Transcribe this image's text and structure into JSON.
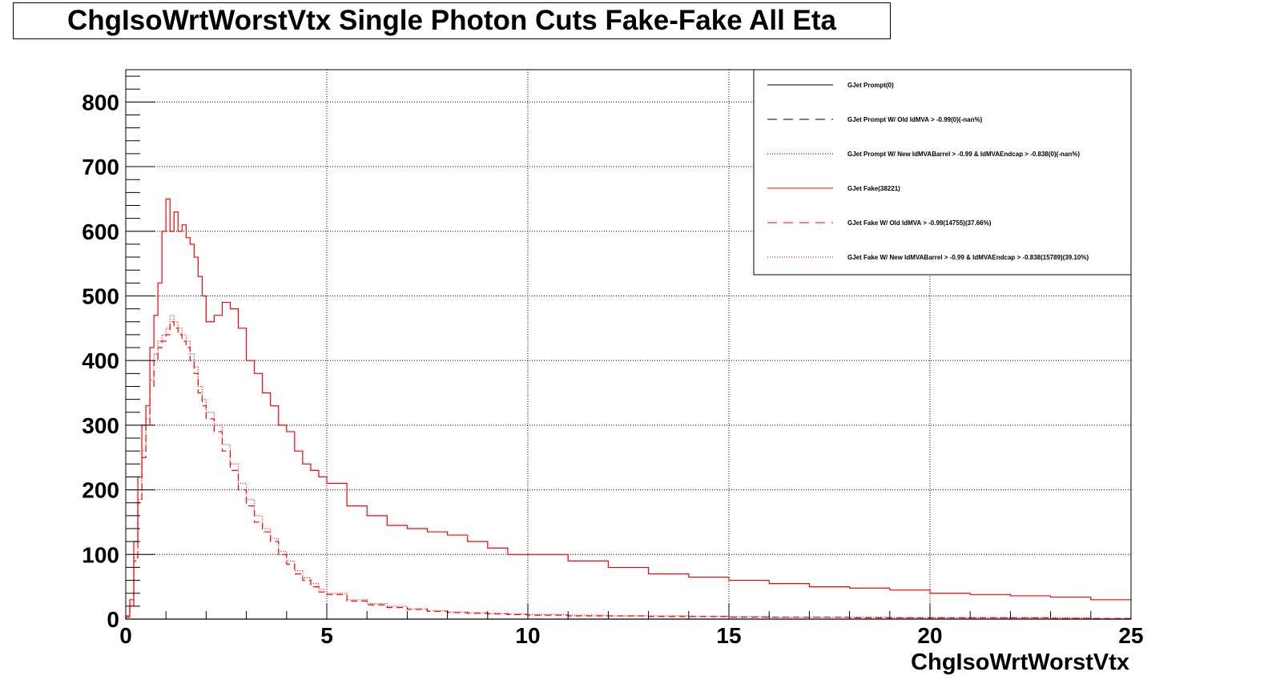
{
  "chart_data": {
    "type": "line",
    "title": "ChgIsoWrtWorstVtx Single Photon Cuts Fake-Fake All Eta",
    "xlabel": "ChgIsoWrtWorstVtx",
    "ylabel": "",
    "xlim": [
      0,
      25
    ],
    "ylim": [
      0,
      850
    ],
    "xticks": [
      "0",
      "5",
      "10",
      "15",
      "20",
      "25"
    ],
    "yticks": [
      "0",
      "100",
      "200",
      "300",
      "400",
      "500",
      "600",
      "700",
      "800"
    ],
    "grid": true,
    "legend_position": "top-right",
    "legend": [
      {
        "label": "GJet Prompt(0)",
        "color": "#000000",
        "style": "solid"
      },
      {
        "label": "GJet Prompt W/ Old IdMVA > -0.99(0)(-nan%)",
        "color": "#000000",
        "style": "dashed"
      },
      {
        "label": "GJet Prompt W/ New IdMVABarrel > -0.99 & IdMVAEndcap > -0.838(0)(-nan%)",
        "color": "#000000",
        "style": "dotted"
      },
      {
        "label": "GJet Fake(38221)",
        "color": "#ff0000",
        "style": "solid"
      },
      {
        "label": "GJet Fake W/ Old IdMVA > -0.99(14755)(37.66%)",
        "color": "#ff0000",
        "style": "dashed"
      },
      {
        "label": "GJet Fake W/ New IdMVABarrel > -0.99 & IdMVAEndcap > -0.838(15789)(39.10%)",
        "color": "#ff0000",
        "style": "dotted"
      }
    ],
    "series": [
      {
        "name": "GJet Prompt",
        "style": "solid",
        "color": "#000000",
        "x": [
          0,
          25
        ],
        "values": [
          0,
          0
        ]
      },
      {
        "name": "GJet Fake",
        "style": "solid",
        "color": "#ff0000",
        "x": [
          0.0,
          0.1,
          0.2,
          0.3,
          0.4,
          0.5,
          0.6,
          0.7,
          0.8,
          0.9,
          1.0,
          1.1,
          1.2,
          1.3,
          1.4,
          1.5,
          1.6,
          1.7,
          1.8,
          1.9,
          2.0,
          2.2,
          2.4,
          2.6,
          2.8,
          3.0,
          3.2,
          3.4,
          3.6,
          3.8,
          4.0,
          4.2,
          4.4,
          4.6,
          4.8,
          5.0,
          5.5,
          6.0,
          6.5,
          7.0,
          7.5,
          8.0,
          8.5,
          9.0,
          9.5,
          10.0,
          11.0,
          12.0,
          13.0,
          14.0,
          15.0,
          16.0,
          17.0,
          18.0,
          19.0,
          20.0,
          21.0,
          22.0,
          23.0,
          24.0,
          25.0
        ],
        "values": [
          5,
          30,
          120,
          220,
          300,
          330,
          420,
          470,
          520,
          600,
          650,
          600,
          630,
          600,
          610,
          590,
          580,
          560,
          530,
          500,
          460,
          470,
          490,
          480,
          450,
          400,
          380,
          350,
          330,
          300,
          290,
          260,
          240,
          230,
          220,
          210,
          175,
          160,
          145,
          140,
          135,
          130,
          120,
          110,
          100,
          100,
          90,
          80,
          70,
          65,
          60,
          55,
          50,
          48,
          45,
          40,
          38,
          36,
          34,
          30,
          28
        ]
      },
      {
        "name": "GJet Fake W/ Old IdMVA",
        "style": "dashed",
        "color": "#ff0000",
        "x": [
          0.0,
          0.1,
          0.2,
          0.3,
          0.4,
          0.5,
          0.6,
          0.7,
          0.8,
          0.9,
          1.0,
          1.1,
          1.2,
          1.3,
          1.4,
          1.5,
          1.6,
          1.7,
          1.8,
          1.9,
          2.0,
          2.2,
          2.4,
          2.6,
          2.8,
          3.0,
          3.2,
          3.4,
          3.6,
          3.8,
          4.0,
          4.2,
          4.4,
          4.6,
          4.8,
          5.0,
          5.5,
          6.0,
          6.5,
          7.0,
          7.5,
          8.0,
          8.5,
          9.0,
          9.5,
          10.0,
          11.0,
          12.0,
          13.0,
          14.0,
          15.0,
          16.0,
          17.0,
          18.0,
          19.0,
          20.0,
          21.0,
          22.0,
          23.0,
          24.0,
          25.0
        ],
        "values": [
          3,
          20,
          90,
          180,
          250,
          300,
          360,
          400,
          420,
          430,
          440,
          460,
          450,
          440,
          430,
          420,
          400,
          380,
          350,
          330,
          310,
          290,
          260,
          230,
          200,
          175,
          150,
          135,
          120,
          100,
          85,
          70,
          60,
          50,
          42,
          38,
          28,
          22,
          18,
          15,
          12,
          10,
          9,
          8,
          7,
          6,
          5,
          5,
          4,
          4,
          3,
          3,
          3,
          2,
          2,
          2,
          2,
          2,
          1,
          1,
          1
        ]
      },
      {
        "name": "GJet Fake W/ New IdMVA",
        "style": "dotted",
        "color": "#ff0000",
        "x": [
          0.0,
          0.1,
          0.2,
          0.3,
          0.4,
          0.5,
          0.6,
          0.7,
          0.8,
          0.9,
          1.0,
          1.1,
          1.2,
          1.3,
          1.4,
          1.5,
          1.6,
          1.7,
          1.8,
          1.9,
          2.0,
          2.2,
          2.4,
          2.6,
          2.8,
          3.0,
          3.2,
          3.4,
          3.6,
          3.8,
          4.0,
          4.2,
          4.4,
          4.6,
          4.8,
          5.0,
          5.5,
          6.0,
          6.5,
          7.0,
          7.5,
          8.0,
          8.5,
          9.0,
          9.5,
          10.0,
          11.0,
          12.0,
          13.0,
          14.0,
          15.0,
          16.0,
          17.0,
          18.0,
          19.0,
          20.0,
          21.0,
          22.0,
          23.0,
          24.0,
          25.0
        ],
        "values": [
          3,
          22,
          95,
          185,
          260,
          310,
          370,
          410,
          430,
          440,
          450,
          470,
          460,
          450,
          440,
          430,
          410,
          390,
          360,
          340,
          320,
          300,
          270,
          240,
          210,
          185,
          160,
          140,
          125,
          105,
          90,
          75,
          64,
          55,
          46,
          40,
          30,
          24,
          20,
          16,
          13,
          11,
          10,
          9,
          8,
          7,
          6,
          5,
          5,
          4,
          4,
          3,
          3,
          3,
          2,
          2,
          2,
          2,
          2,
          1,
          1
        ]
      }
    ]
  }
}
